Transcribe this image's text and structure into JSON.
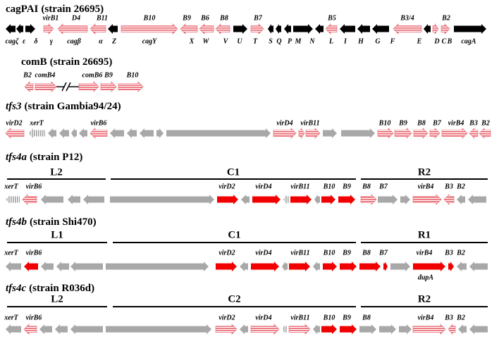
{
  "tracks": [
    {
      "name": "cagPAI",
      "strain": "(strain 26695)",
      "labels": [
        "virB1",
        "D4",
        "B11",
        "B10",
        "B9",
        "B6",
        "B8",
        "B7",
        "B5",
        "B3/4",
        "B2"
      ],
      "bottom_labels": [
        "cagζ",
        "ε",
        "δ",
        "γ",
        "cagβ",
        "α",
        "Z",
        "cagY",
        "X",
        "W",
        "V",
        "U",
        "T",
        "S",
        "Q",
        "P",
        "M",
        "N",
        "L",
        "I",
        "H",
        "G",
        "F",
        "E",
        "D",
        "C",
        "B",
        "cagA"
      ]
    },
    {
      "name": "comB",
      "strain": "(strain 26695)",
      "labels": [
        "B2",
        "comB4",
        "comB6",
        "B9",
        "B10"
      ]
    },
    {
      "name": "tfs3",
      "strain": "(strain Gambia94/24)",
      "labels": [
        "virD2",
        "xerT",
        "virB6",
        "virD4",
        "virB11",
        "B10",
        "B9",
        "B8",
        "B7",
        "virB4",
        "B3",
        "B2"
      ]
    },
    {
      "name": "tfs4a",
      "strain": "(strain P12)",
      "regions": [
        "L2",
        "C1",
        "R2"
      ],
      "labels": [
        "xerT",
        "virB6",
        "virD2",
        "virD4",
        "virB11",
        "B10",
        "B9",
        "B8",
        "B7",
        "virB4",
        "B3",
        "B2"
      ]
    },
    {
      "name": "tfs4b",
      "strain": "(strain Shi470)",
      "regions": [
        "L1",
        "C1",
        "R1"
      ],
      "labels": [
        "xerT",
        "virB6",
        "virD2",
        "virD4",
        "virB11",
        "B10",
        "B9",
        "B8",
        "B7",
        "virB4",
        "B3",
        "B2"
      ],
      "bottom_labels": [
        "dupA"
      ]
    },
    {
      "name": "tfs4c",
      "strain": "(strain R036d)",
      "regions": [
        "L2",
        "C2",
        "R2"
      ],
      "labels": [
        "xerT",
        "virB6",
        "virD2",
        "virD4",
        "virB11",
        "B10",
        "B9",
        "B8",
        "virB4",
        "B3",
        "B2"
      ]
    }
  ]
}
